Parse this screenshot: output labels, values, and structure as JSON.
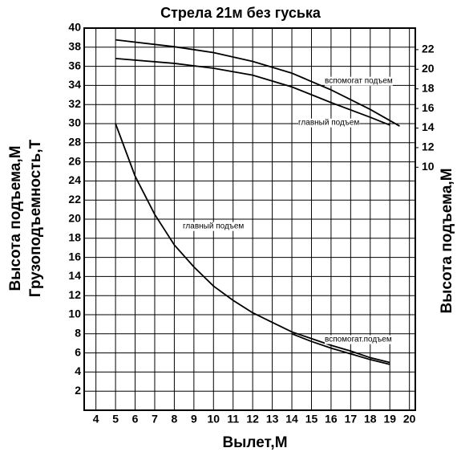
{
  "chart_data": {
    "type": "line",
    "title": "Стрела 21м без гуська",
    "xlabel": "Вылет,М",
    "ylabel": [
      "Высота подъема,М",
      "Грузоподъемность,Т"
    ],
    "y2label": "Высота подъема,М",
    "xlim": [
      3.4,
      20.3
    ],
    "xticks": [
      4,
      5,
      6,
      7,
      8,
      9,
      10,
      11,
      12,
      13,
      14,
      15,
      16,
      17,
      18,
      19,
      20
    ],
    "ylim": [
      0,
      40
    ],
    "yticks": [
      2,
      4,
      6,
      8,
      10,
      12,
      14,
      16,
      18,
      20,
      22,
      24,
      26,
      28,
      30,
      32,
      34,
      36,
      38,
      40
    ],
    "y2lim": [
      -14.8,
      24.2
    ],
    "y2ticks": [
      10,
      12,
      14,
      16,
      18,
      20,
      22
    ],
    "grid": true,
    "series": [
      {
        "color": "#000000",
        "axis": "y2",
        "x": [
          5,
          8,
          10,
          12,
          14,
          16,
          18,
          19.5
        ],
        "values": [
          23.0,
          22.3,
          21.7,
          20.8,
          19.6,
          17.9,
          15.9,
          14.2
        ]
      },
      {
        "color": "#000000",
        "axis": "y2",
        "x": [
          5,
          8,
          10,
          12,
          14,
          16,
          18,
          19
        ],
        "values": [
          21.1,
          20.6,
          20.1,
          19.4,
          18.2,
          16.6,
          15.1,
          14.3
        ]
      },
      {
        "color": "#000000",
        "x": [
          5,
          6,
          7,
          8,
          9,
          10,
          11,
          12,
          13,
          14,
          15,
          16,
          17,
          18,
          19
        ],
        "values": [
          30,
          24.5,
          20.5,
          17.3,
          15,
          13,
          11.5,
          10.2,
          9.2,
          8.2,
          7.5,
          6.8,
          6.2,
          5.5,
          5
        ]
      },
      {
        "color": "#000000",
        "x": [
          14,
          15,
          16,
          17,
          18,
          19
        ],
        "values": [
          8,
          7.2,
          6.5,
          5.9,
          5.3,
          4.8
        ]
      }
    ],
    "annotations": [
      "вспомогат подъем",
      "главный подъем",
      "главный подъем",
      "вспомогат.подъем"
    ]
  }
}
